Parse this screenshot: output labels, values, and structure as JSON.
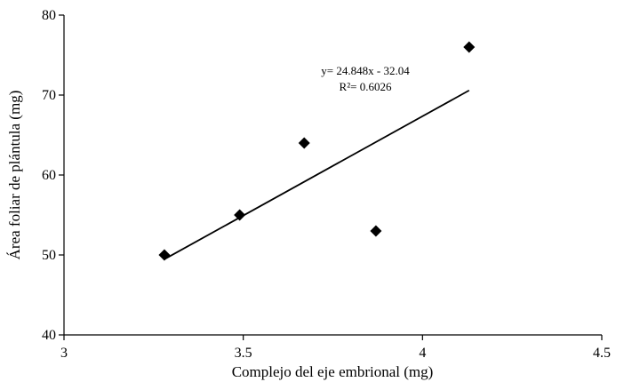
{
  "chart_data": {
    "type": "scatter",
    "xlabel": "Complejo del eje embrional (mg)",
    "ylabel": "Área foliar de plántula (mg)",
    "xlim": [
      3,
      4.5
    ],
    "ylim": [
      40,
      80
    ],
    "x_ticks": [
      "3",
      "3.5",
      "4",
      "4.5"
    ],
    "y_ticks": [
      "40",
      "50",
      "60",
      "70",
      "80"
    ],
    "grid": false,
    "legend": "none",
    "marker": "diamond",
    "series": [
      {
        "points": [
          {
            "x": 3.28,
            "y": 50
          },
          {
            "x": 3.49,
            "y": 55
          },
          {
            "x": 3.67,
            "y": 64
          },
          {
            "x": 3.87,
            "y": 53
          },
          {
            "x": 4.13,
            "y": 76
          }
        ]
      }
    ],
    "trendline": {
      "slope": 24.848,
      "intercept": -32.04,
      "x_range": [
        3.28,
        4.13
      ]
    },
    "annotations": {
      "equation": "y= 24.848x - 32.04",
      "r_squared": "R²= 0.6026"
    },
    "colors": {
      "marker": "#000000",
      "line": "#000000",
      "axis": "#000000"
    }
  }
}
